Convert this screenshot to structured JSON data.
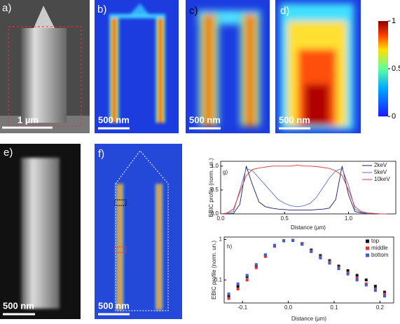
{
  "panel_labels": [
    "a)",
    "b)",
    "c)",
    "d)",
    "e)",
    "f)"
  ],
  "scale_bars": [
    "1 µm",
    "500 nm",
    "500 nm",
    "500 nm",
    "500 nm",
    "500 nm"
  ],
  "colorbar": {
    "lim": [
      0,
      1
    ],
    "ticks": [
      1,
      0.5,
      0
    ]
  },
  "chart_data": [
    {
      "type": "line",
      "label": "g)",
      "xlabel": "Distance (µm)",
      "ylabel": "EBIC profile (norm. un.)",
      "x": [
        0,
        0.05,
        0.1,
        0.15,
        0.2,
        0.25,
        0.3,
        0.35,
        0.4,
        0.45,
        0.5,
        0.55,
        0.6,
        0.65,
        0.7,
        0.75,
        0.8,
        0.85,
        0.9,
        0.95,
        1.0,
        1.05,
        1.1,
        1.15,
        1.2,
        1.25,
        1.3
      ],
      "series": [
        {
          "name": "2keV",
          "color": "#1b1f5e",
          "values": [
            0,
            0,
            0.01,
            0.2,
            1.0,
            0.6,
            0.25,
            0.15,
            0.12,
            0.1,
            0.09,
            0.08,
            0.08,
            0.08,
            0.08,
            0.09,
            0.1,
            0.12,
            0.3,
            1.0,
            0.4,
            0.05,
            0.02,
            0.01,
            0,
            0,
            0
          ]
        },
        {
          "name": "5keV",
          "color": "#5a6fd0",
          "values": [
            0,
            0.01,
            0.05,
            0.5,
            0.95,
            0.9,
            0.75,
            0.6,
            0.45,
            0.3,
            0.22,
            0.17,
            0.15,
            0.17,
            0.22,
            0.35,
            0.55,
            0.75,
            0.9,
            0.95,
            0.6,
            0.1,
            0.03,
            0.01,
            0.01,
            0,
            0
          ]
        },
        {
          "name": "10keV",
          "color": "#e8322e",
          "values": [
            0,
            0.02,
            0.1,
            0.45,
            0.8,
            0.93,
            0.96,
            0.98,
            1.0,
            1.0,
            1.0,
            1.0,
            1.02,
            1.0,
            1.0,
            0.99,
            0.97,
            0.95,
            0.9,
            0.8,
            0.5,
            0.15,
            0.05,
            0.02,
            0.01,
            0,
            0
          ]
        }
      ],
      "xlim": [
        0,
        1.37
      ],
      "ylim": [
        0,
        1.1
      ],
      "xticks": [
        {
          "value": 0,
          "label": "0.0"
        },
        0.5,
        {
          "value": 1,
          "label": "1.0"
        }
      ],
      "yticks": [
        {
          "value": 0,
          "label": "0.0"
        },
        0.5,
        {
          "value": 1,
          "label": "1.0"
        }
      ],
      "legend": "upper right"
    },
    {
      "type": "scatter",
      "label": "h)",
      "xlabel": "Distance (µm)",
      "ylabel": "EBIC profile (norm. un.)",
      "log_y": true,
      "x": [
        -0.13,
        -0.11,
        -0.09,
        -0.07,
        -0.05,
        -0.03,
        -0.01,
        0.01,
        0.03,
        0.05,
        0.07,
        0.09,
        0.11,
        0.13,
        0.15,
        0.17,
        0.19,
        0.21
      ],
      "series": [
        {
          "name": "top",
          "color": "#111111",
          "values": [
            0.04,
            0.07,
            0.12,
            0.22,
            0.4,
            0.7,
            0.93,
            0.95,
            0.78,
            0.55,
            0.4,
            0.3,
            0.22,
            0.17,
            0.13,
            0.1,
            0.07,
            0.05
          ]
        },
        {
          "name": "middle",
          "color": "#e8322e",
          "values": [
            0.035,
            0.06,
            0.1,
            0.2,
            0.38,
            0.68,
            0.92,
            0.96,
            0.8,
            0.52,
            0.37,
            0.28,
            0.2,
            0.15,
            0.11,
            0.08,
            0.06,
            0.045
          ]
        },
        {
          "name": "bottom",
          "color": "#3a5fd9",
          "values": [
            0.045,
            0.08,
            0.13,
            0.24,
            0.42,
            0.72,
            0.94,
            0.94,
            0.76,
            0.5,
            0.35,
            0.26,
            0.19,
            0.14,
            0.1,
            0.075,
            0.055,
            0.04
          ]
        }
      ],
      "xlim": [
        -0.14,
        0.23
      ],
      "ylim": [
        0.027,
        1.15
      ],
      "xticks": [
        -0.1,
        {
          "value": 0,
          "label": "0.0"
        },
        0.1,
        0.2
      ],
      "yticks": [
        0.1,
        1
      ],
      "legend": "upper right"
    }
  ]
}
